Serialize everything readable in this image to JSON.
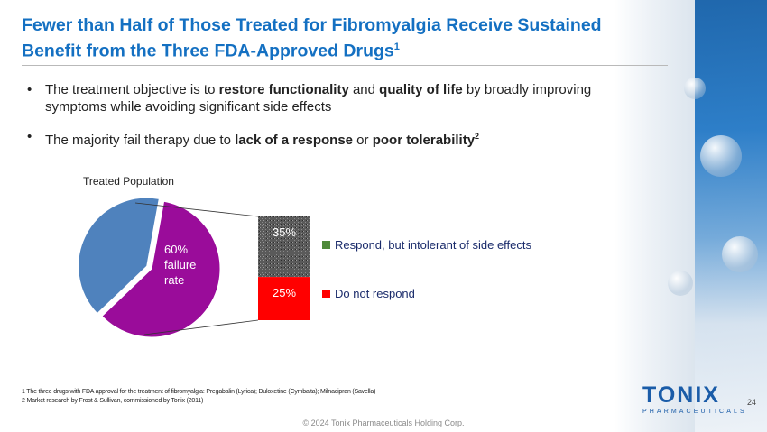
{
  "header": {
    "title_line1": "Fewer than Half of Those Treated for Fibromyalgia Receive Sustained",
    "title_line2": "Benefit from the Three FDA-Approved Drugs",
    "title_sup": "1"
  },
  "bullets": [
    {
      "parts": [
        "The treatment objective is to ",
        "restore functionality",
        " and ",
        "quality of life",
        " by broadly improving symptoms while avoiding significant side effects"
      ]
    },
    {
      "parts": [
        "The majority fail therapy due to ",
        "lack of a response",
        " or ",
        "poor tolerability",
        "2"
      ]
    }
  ],
  "chart_data": {
    "type": "pie",
    "title": "Treated Population",
    "slices": [
      {
        "label": "60% failure rate",
        "value": 60,
        "color": "#9a0c9a"
      },
      {
        "value": 40,
        "color": "#4f82bd"
      }
    ],
    "breakdown": {
      "type": "stacked-bar",
      "segments": [
        {
          "label": "35%",
          "value": 35,
          "name": "Respond, but intolerant of side effects",
          "color": "#6d6d6d",
          "legend_color": "#4f8a3a"
        },
        {
          "label": "25%",
          "value": 25,
          "name": "Do not respond",
          "color": "#ff0000",
          "legend_color": "#ff0000"
        }
      ]
    },
    "pie_label_lines": [
      "60%",
      "failure",
      "rate"
    ]
  },
  "footnotes": [
    "1 The three drugs with FDA approval for the treatment of fibromyalgia: Pregabalin (Lyrica); Duloxetine (Cymbalta); Milnacipran (Savella)",
    "2 Market research by Frost & Sullivan, commissioned by Tonix (2011)"
  ],
  "footer": {
    "copyright": "© 2024 Tonix Pharmaceuticals Holding Corp.",
    "page_number": "24"
  },
  "logo": {
    "word": "TONIX",
    "subtitle": "PHARMACEUTICALS"
  }
}
